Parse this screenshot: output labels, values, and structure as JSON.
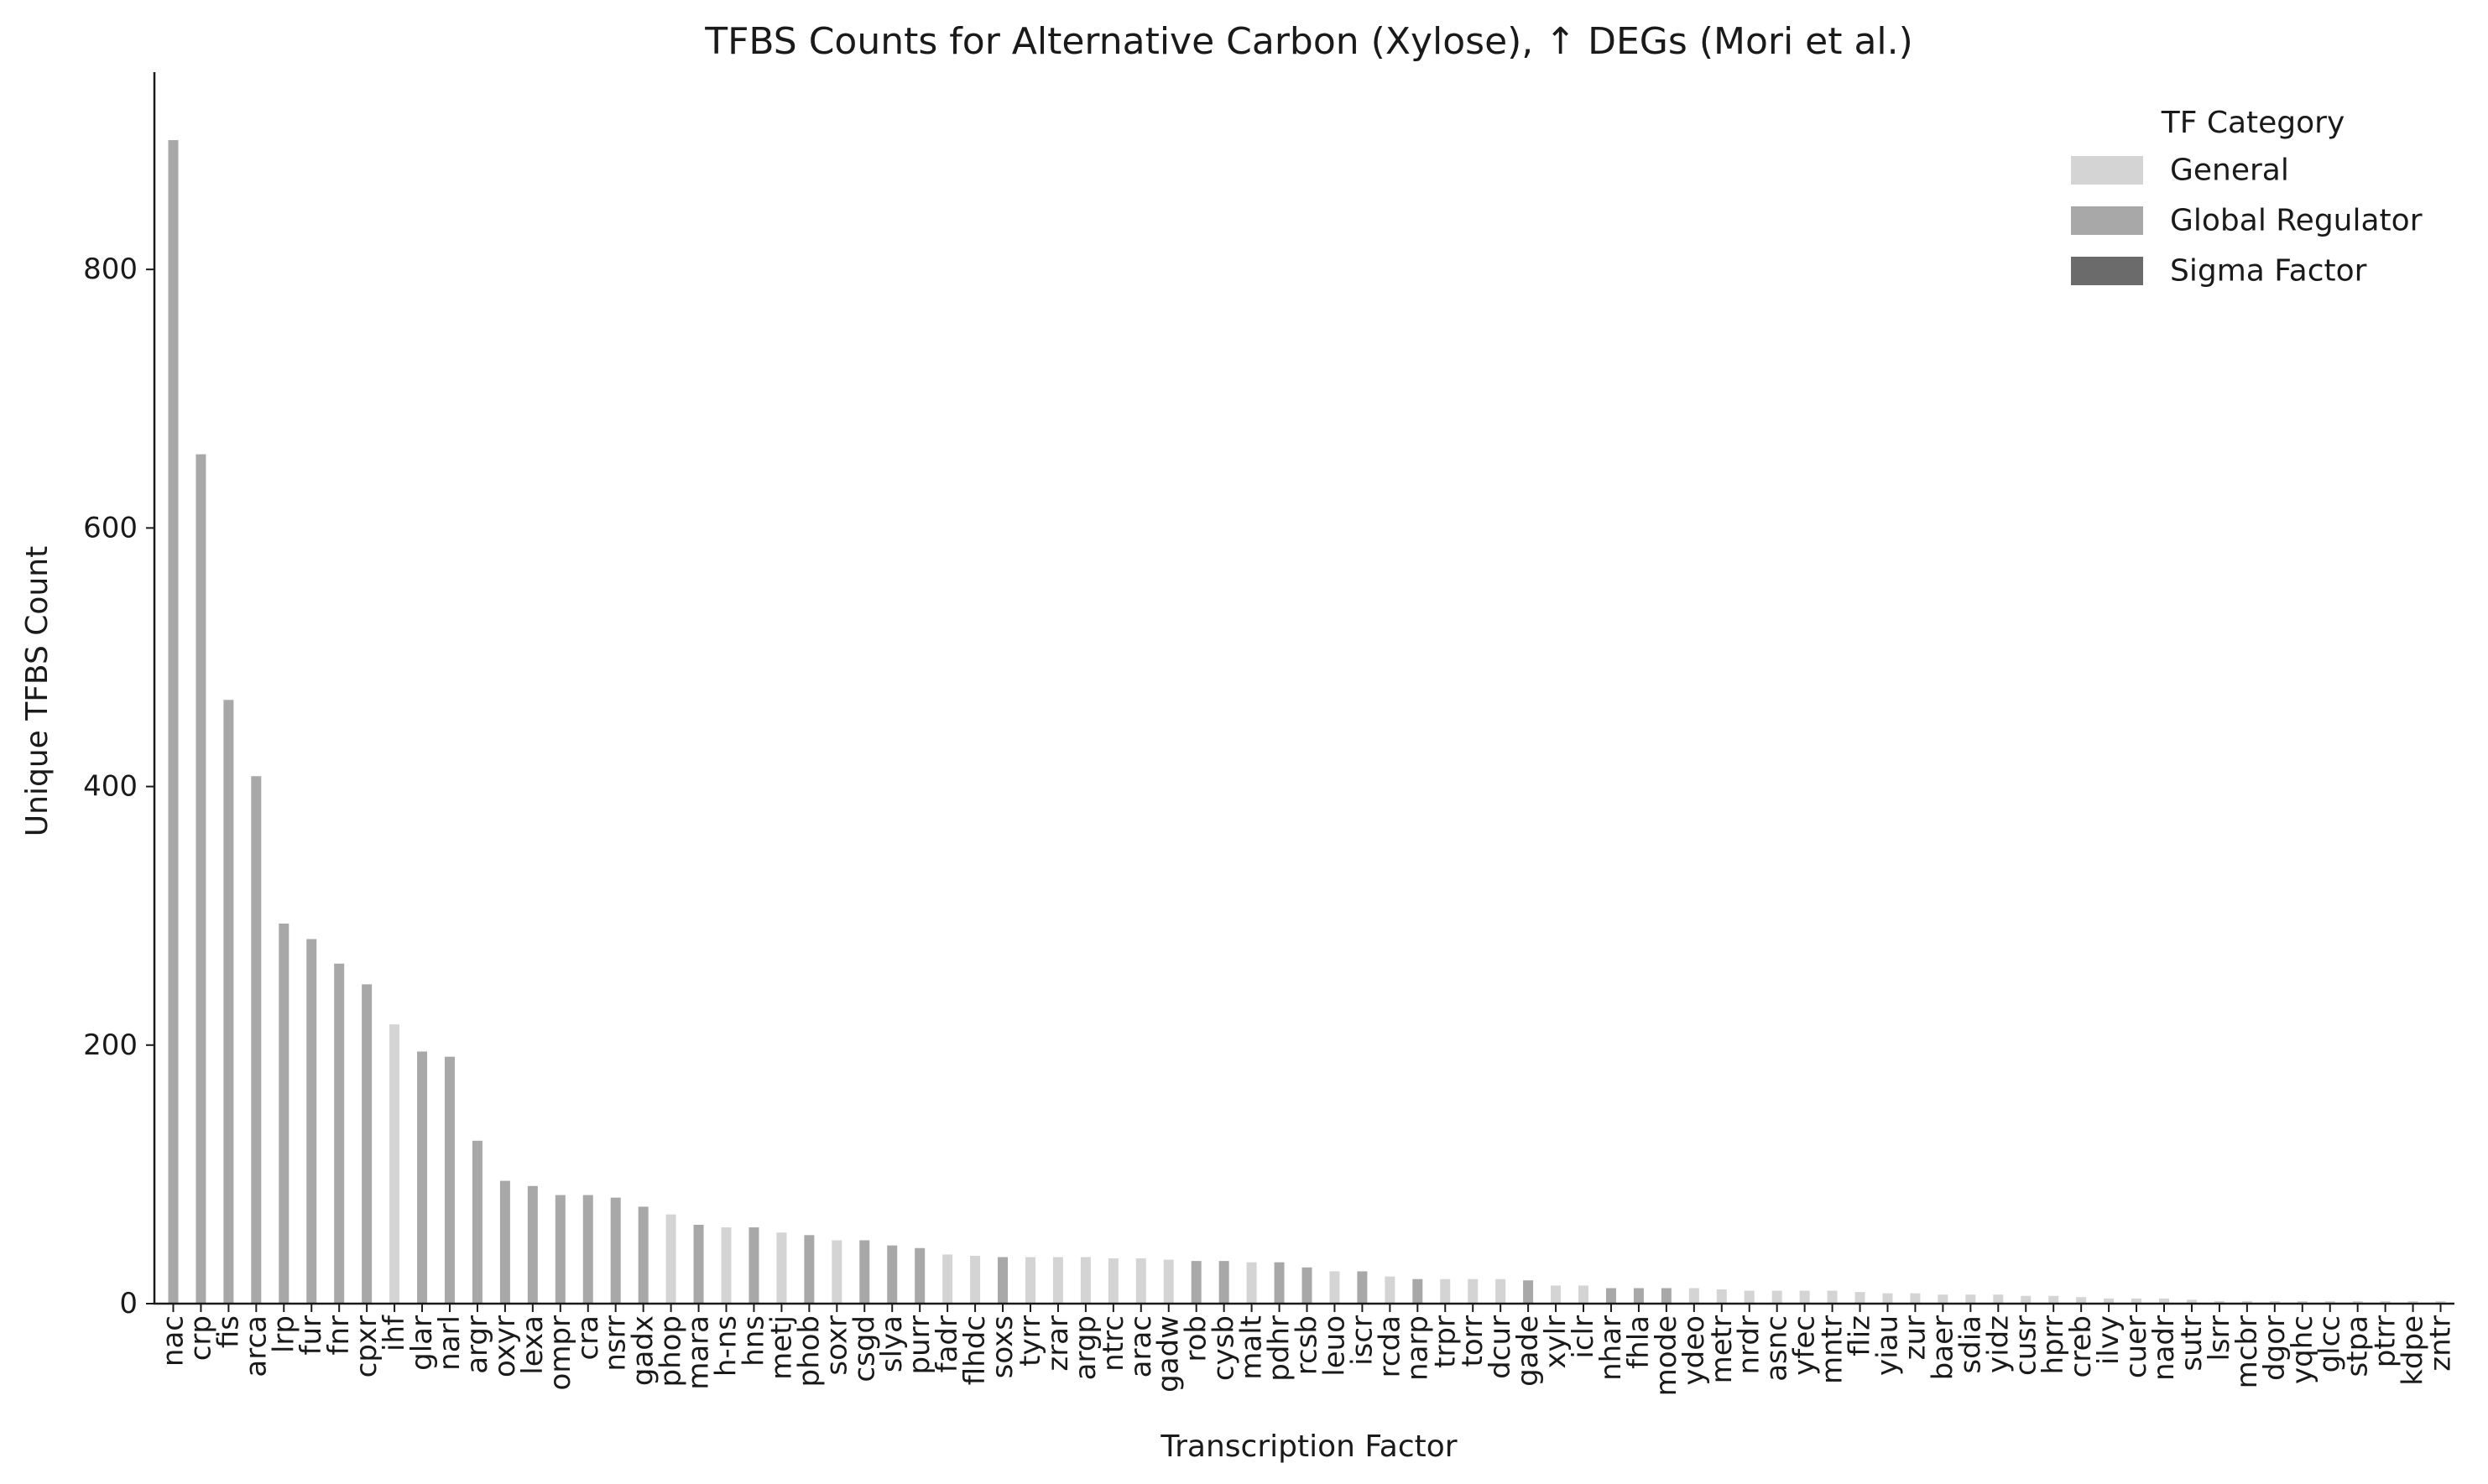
{
  "chart_data": {
    "type": "bar",
    "title": "TFBS Counts for Alternative Carbon (Xylose), ↑ DEGs (Mori et al.)",
    "xlabel": "Transcription Factor",
    "ylabel": "Unique TFBS Count",
    "ylim": [
      0,
      950
    ],
    "yticks": [
      0,
      200,
      400,
      600,
      800
    ],
    "grid": false,
    "legend": {
      "title": "TF Category",
      "placement": "top-right",
      "entries": [
        {
          "label": "General",
          "color": "#d4d4d4"
        },
        {
          "label": "Global Regulator",
          "color": "#a8a8a8"
        },
        {
          "label": "Sigma Factor",
          "color": "#6b6b6b"
        }
      ]
    },
    "categories": [
      "nac",
      "crp",
      "fis",
      "arca",
      "lrp",
      "fur",
      "fnr",
      "cpxr",
      "ihf",
      "glar",
      "narl",
      "argr",
      "oxyr",
      "lexa",
      "ompr",
      "cra",
      "nsrr",
      "gadx",
      "phop",
      "mara",
      "h-ns",
      "hns",
      "metj",
      "phob",
      "soxr",
      "csgd",
      "slya",
      "purr",
      "fadr",
      "flhdc",
      "soxs",
      "tyrr",
      "zrar",
      "argp",
      "ntrc",
      "arac",
      "gadw",
      "rob",
      "cysb",
      "malt",
      "pdhr",
      "rcsb",
      "leuo",
      "iscr",
      "rcda",
      "narp",
      "trpr",
      "torr",
      "dcur",
      "gade",
      "xylr",
      "iclr",
      "nhar",
      "fhla",
      "mode",
      "ydeo",
      "metr",
      "nrdr",
      "asnc",
      "yfec",
      "mntr",
      "fliz",
      "yiau",
      "zur",
      "baer",
      "sdia",
      "yidz",
      "cusr",
      "hprr",
      "creb",
      "ilvy",
      "cuer",
      "nadr",
      "sutr",
      "lsrr",
      "mcbr",
      "dgor",
      "yqhc",
      "glcc",
      "stpa",
      "ptrr",
      "kdpe",
      "zntr"
    ],
    "values": [
      900,
      657,
      467,
      408,
      294,
      282,
      263,
      247,
      216,
      195,
      191,
      126,
      95,
      91,
      84,
      84,
      82,
      75,
      69,
      61,
      59,
      59,
      55,
      53,
      49,
      49,
      45,
      43,
      38,
      37,
      36,
      36,
      36,
      36,
      35,
      35,
      34,
      33,
      33,
      32,
      32,
      28,
      25,
      25,
      21,
      19,
      19,
      19,
      19,
      18,
      14,
      14,
      12,
      12,
      12,
      12,
      11,
      10,
      10,
      10,
      10,
      9,
      8,
      8,
      7,
      7,
      7,
      6,
      6,
      5,
      4,
      4,
      4,
      3,
      2,
      2,
      2,
      2,
      2,
      2,
      2,
      2,
      2
    ],
    "colors": [
      "#a8a8a8",
      "#a8a8a8",
      "#a8a8a8",
      "#a8a8a8",
      "#a8a8a8",
      "#a8a8a8",
      "#a8a8a8",
      "#a8a8a8",
      "#d4d4d4",
      "#a8a8a8",
      "#a8a8a8",
      "#a8a8a8",
      "#a8a8a8",
      "#a8a8a8",
      "#a8a8a8",
      "#a8a8a8",
      "#a8a8a8",
      "#a8a8a8",
      "#d4d4d4",
      "#a8a8a8",
      "#d4d4d4",
      "#a8a8a8",
      "#d4d4d4",
      "#a8a8a8",
      "#d4d4d4",
      "#a8a8a8",
      "#a8a8a8",
      "#a8a8a8",
      "#d4d4d4",
      "#d4d4d4",
      "#a8a8a8",
      "#d4d4d4",
      "#d4d4d4",
      "#d4d4d4",
      "#d4d4d4",
      "#d4d4d4",
      "#d4d4d4",
      "#a8a8a8",
      "#a8a8a8",
      "#d4d4d4",
      "#a8a8a8",
      "#a8a8a8",
      "#d4d4d4",
      "#a8a8a8",
      "#d4d4d4",
      "#a8a8a8",
      "#d4d4d4",
      "#d4d4d4",
      "#d4d4d4",
      "#a8a8a8",
      "#d4d4d4",
      "#d4d4d4",
      "#a8a8a8",
      "#a8a8a8",
      "#a8a8a8",
      "#d4d4d4",
      "#d4d4d4",
      "#d4d4d4",
      "#d4d4d4",
      "#d4d4d4",
      "#d4d4d4",
      "#d4d4d4",
      "#d4d4d4",
      "#d4d4d4",
      "#d4d4d4",
      "#d4d4d4",
      "#d4d4d4",
      "#d4d4d4",
      "#d4d4d4",
      "#d4d4d4",
      "#d4d4d4",
      "#d4d4d4",
      "#d4d4d4",
      "#d4d4d4",
      "#d4d4d4",
      "#d4d4d4",
      "#d4d4d4",
      "#d4d4d4",
      "#d4d4d4",
      "#d4d4d4",
      "#d4d4d4",
      "#d4d4d4",
      "#d4d4d4"
    ]
  }
}
